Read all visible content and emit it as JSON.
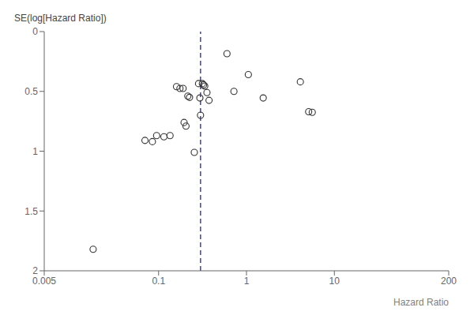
{
  "chart_data": {
    "type": "scatter",
    "title": "",
    "xlabel": "Hazard Ratio",
    "ylabel": "SE(log[Hazard Ratio])",
    "log": "x",
    "grid": false,
    "marker": "open circle",
    "color": "#333333",
    "xlim": [
      0.005,
      200
    ],
    "xticks": [
      0.005,
      0.1,
      1,
      10,
      200
    ],
    "ylim": [
      2,
      0
    ],
    "yticks": [
      0,
      0.5,
      1,
      1.5,
      2
    ],
    "vline": {
      "x": 0.3,
      "color": "#3333bb",
      "line_style": "dashed"
    },
    "x": [
      0.018,
      0.07,
      0.085,
      0.095,
      0.115,
      0.135,
      0.16,
      0.175,
      0.19,
      0.195,
      0.205,
      0.215,
      0.225,
      0.255,
      0.285,
      0.295,
      0.3,
      0.315,
      0.325,
      0.335,
      0.355,
      0.375,
      0.6,
      0.72,
      1.05,
      1.55,
      4.1,
      5.1,
      5.6
    ],
    "values": [
      1.82,
      0.91,
      0.92,
      0.87,
      0.88,
      0.87,
      0.46,
      0.475,
      0.475,
      0.76,
      0.79,
      0.54,
      0.55,
      1.01,
      0.435,
      0.555,
      0.7,
      0.435,
      0.445,
      0.455,
      0.51,
      0.575,
      0.185,
      0.5,
      0.36,
      0.555,
      0.42,
      0.67,
      0.675
    ]
  }
}
